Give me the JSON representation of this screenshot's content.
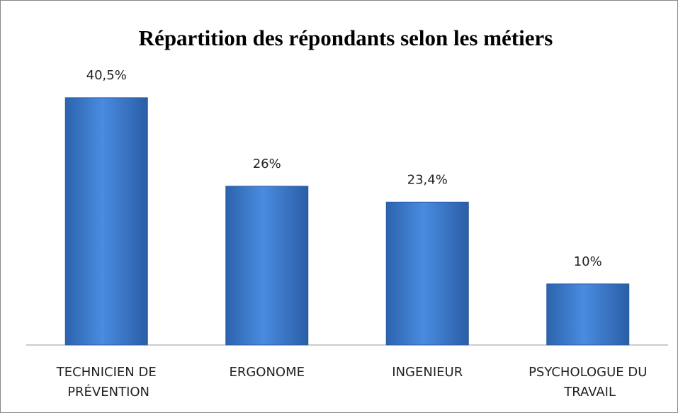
{
  "chart_data": {
    "type": "bar",
    "title": "Répartition des répondants selon les métiers",
    "categories": [
      "TECHNICIEN DE PRÉVENTION",
      "ERGONOME",
      "INGENIEUR",
      "PSYCHOLOGUE DU TRAVAIL"
    ],
    "values": [
      40.5,
      26,
      23.4,
      10
    ],
    "value_labels": [
      "40,5%",
      "26%",
      "23,4%",
      "10%"
    ],
    "color": "#3f7fd0"
  }
}
